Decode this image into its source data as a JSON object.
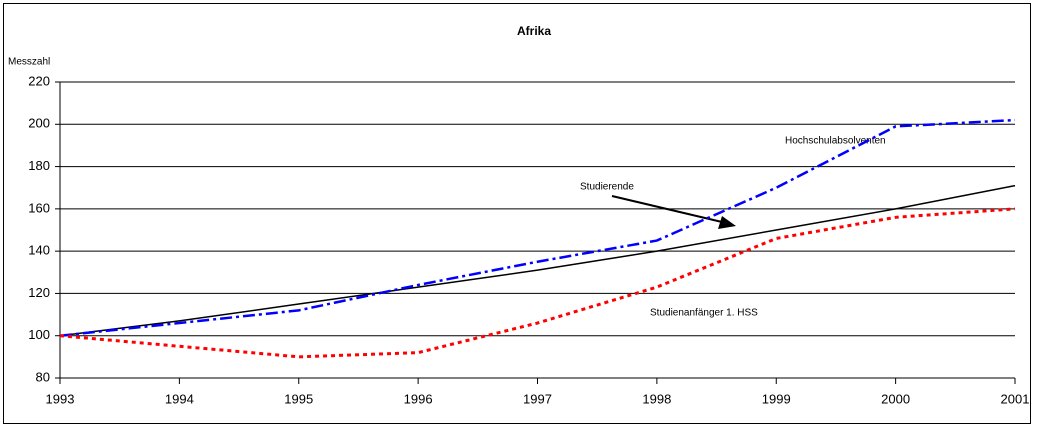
{
  "chart_data": {
    "type": "line",
    "title": "Afrika",
    "y_label": "Messzahl",
    "x": [
      1993,
      1994,
      1995,
      1996,
      1997,
      1998,
      1999,
      2000,
      2001
    ],
    "xlim": [
      1993,
      2001
    ],
    "xticks": [
      1993,
      1994,
      1995,
      1996,
      1997,
      1998,
      1999,
      2000,
      2001
    ],
    "ylim": [
      80,
      220
    ],
    "yticks": [
      80,
      100,
      120,
      140,
      160,
      180,
      200,
      220
    ],
    "grid": true,
    "series": [
      {
        "name": "Studierende",
        "color": "#000000",
        "style": "solid",
        "values": [
          100,
          107,
          115,
          123,
          131,
          140,
          150,
          160,
          171
        ]
      },
      {
        "name": "Hochschulabsolventen",
        "color": "#0000ff",
        "style": "dashdot",
        "values": [
          100,
          106,
          112,
          124,
          135,
          145,
          170,
          199,
          202
        ]
      },
      {
        "name": "Studienanfänger 1. HSS",
        "color": "#ff0000",
        "style": "dotted",
        "values": [
          100,
          95,
          90,
          92,
          106,
          123,
          146,
          156,
          160
        ]
      }
    ]
  }
}
